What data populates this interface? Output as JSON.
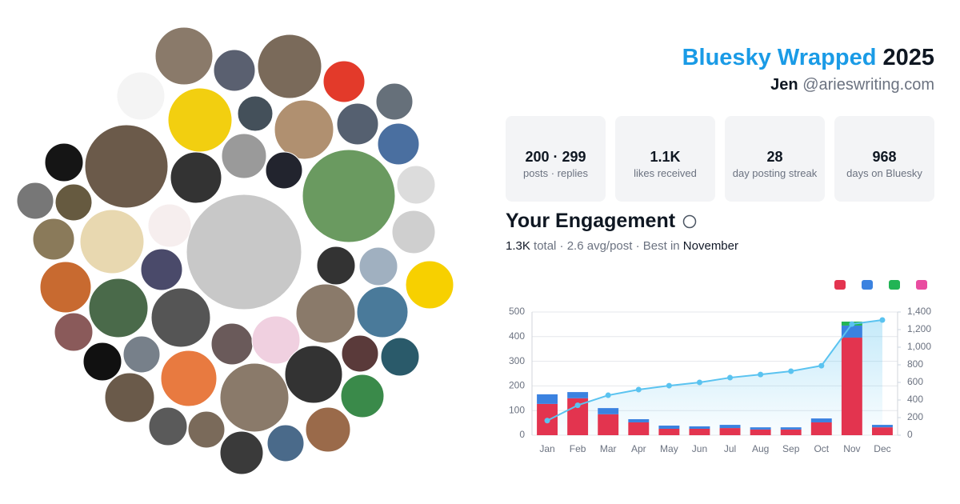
{
  "header": {
    "title": "Bluesky Wrapped",
    "year": "2025",
    "name": "Jen",
    "handle": "@arieswriting.com"
  },
  "stats": [
    {
      "value": "200 · 299",
      "label": "posts · replies"
    },
    {
      "value": "1.1K",
      "label": "likes received"
    },
    {
      "value": "28",
      "label": "day posting streak"
    },
    {
      "value": "968",
      "label": "days on Bluesky"
    }
  ],
  "engagement": {
    "title": "Your Engagement",
    "total": "1.3K",
    "summary": "total · 2.6 avg/post · Best in",
    "best": "November"
  },
  "chart_data": {
    "type": "bar",
    "stacked": true,
    "categories": [
      "Jan",
      "Feb",
      "Mar",
      "Apr",
      "May",
      "Jun",
      "Jul",
      "Aug",
      "Sep",
      "Oct",
      "Nov",
      "Dec"
    ],
    "series": [
      {
        "color": "#e3344f",
        "values": [
          127,
          150,
          85,
          52,
          26,
          26,
          29,
          23,
          23,
          52,
          396,
          32
        ]
      },
      {
        "color": "#3b82e0",
        "values": [
          39,
          25,
          25,
          13,
          13,
          10,
          13,
          9,
          9,
          16,
          49,
          10
        ]
      },
      {
        "color": "#22b455",
        "values": [
          0,
          0,
          0,
          0,
          0,
          0,
          0,
          0,
          0,
          0,
          16,
          0
        ]
      },
      {
        "color": "#e94ca0",
        "values": [
          0,
          0,
          0,
          0,
          0,
          0,
          0,
          0,
          0,
          0,
          0,
          0
        ]
      },
      {
        "type": "line",
        "axis": "y2",
        "color": "#5ac3f0",
        "values": [
          166,
          340,
          454,
          518,
          563,
          600,
          654,
          690,
          727,
          790,
          1263,
          1309
        ]
      }
    ],
    "ylim": [
      0,
      500
    ],
    "yticks": [
      0,
      100,
      200,
      300,
      400,
      500
    ],
    "y2lim": [
      0,
      1400
    ],
    "y2ticks": [
      0,
      200,
      400,
      600,
      800,
      {
        "value": 1000,
        "label": "1,000"
      },
      {
        "value": 1200,
        "label": "1,200"
      },
      {
        "value": 1400,
        "label": "1,400"
      }
    ],
    "grid": true
  }
}
